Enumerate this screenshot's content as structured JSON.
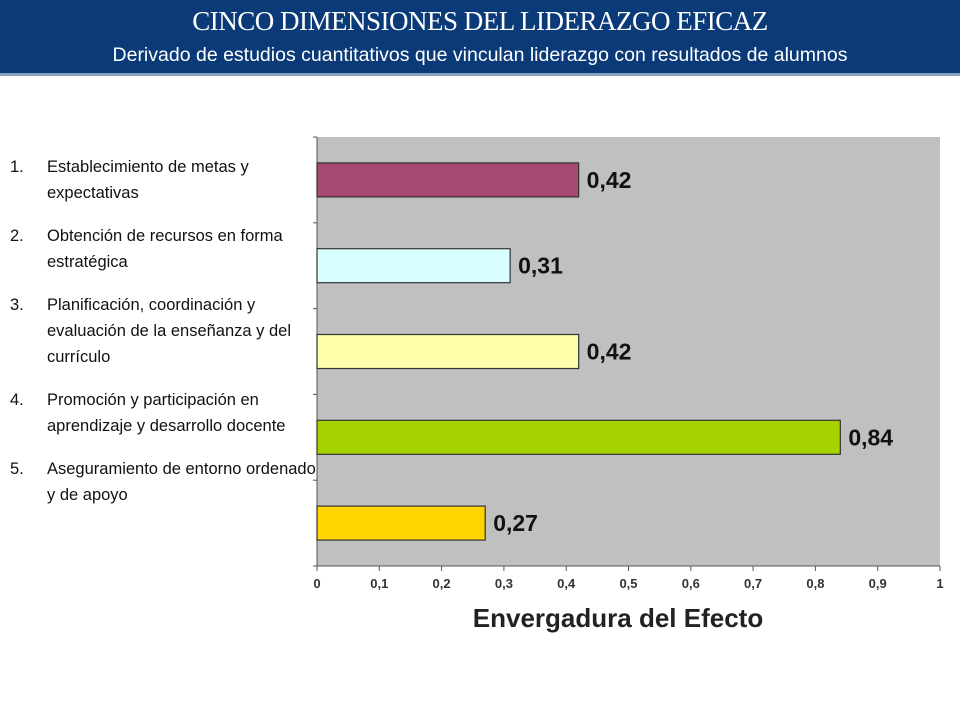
{
  "header": {
    "title": "CINCO DIMENSIONES DEL LIDERAZGO EFICAZ",
    "subtitle": "Derivado de estudios cuantitativos que vinculan liderazgo con resultados de alumnos"
  },
  "dimensions": [
    {
      "number": "1.",
      "label": "Establecimiento de metas y expectativas"
    },
    {
      "number": "2.",
      "label": "Obtención de recursos en forma estratégica"
    },
    {
      "number": "3.",
      "label": "Planificación, coordinación y evaluación de la enseñanza y del currículo"
    },
    {
      "number": "4.",
      "label": "Promoción y participación en aprendizaje y desarrollo docente"
    },
    {
      "number": "5.",
      "label": "Aseguramiento de entorno ordenado y de apoyo"
    }
  ],
  "colors": {
    "banner": "#0b3a78",
    "plot_background": "#c0c0c0",
    "bars": [
      "#a64a74",
      "#d8ffff",
      "#fdfdaa",
      "#a6d200",
      "#ffd400"
    ]
  },
  "chart_data": {
    "type": "bar",
    "orientation": "horizontal",
    "categories": [
      "1",
      "2",
      "3",
      "4",
      "5"
    ],
    "values": [
      0.42,
      0.31,
      0.42,
      0.84,
      0.27
    ],
    "data_labels": [
      "0,42",
      "0,31",
      "0,42",
      "0,84",
      "0,27"
    ],
    "xlabel": "Envergadura del Efecto",
    "ylabel": "",
    "xlim": [
      0,
      1
    ],
    "xticks": [
      0,
      0.1,
      0.2,
      0.3,
      0.4,
      0.5,
      0.6,
      0.7,
      0.8,
      0.9,
      1
    ],
    "xtick_labels": [
      "0",
      "0,1",
      "0,2",
      "0,3",
      "0,4",
      "0,5",
      "0,6",
      "0,7",
      "0,8",
      "0,9",
      "1"
    ],
    "grid": false
  }
}
